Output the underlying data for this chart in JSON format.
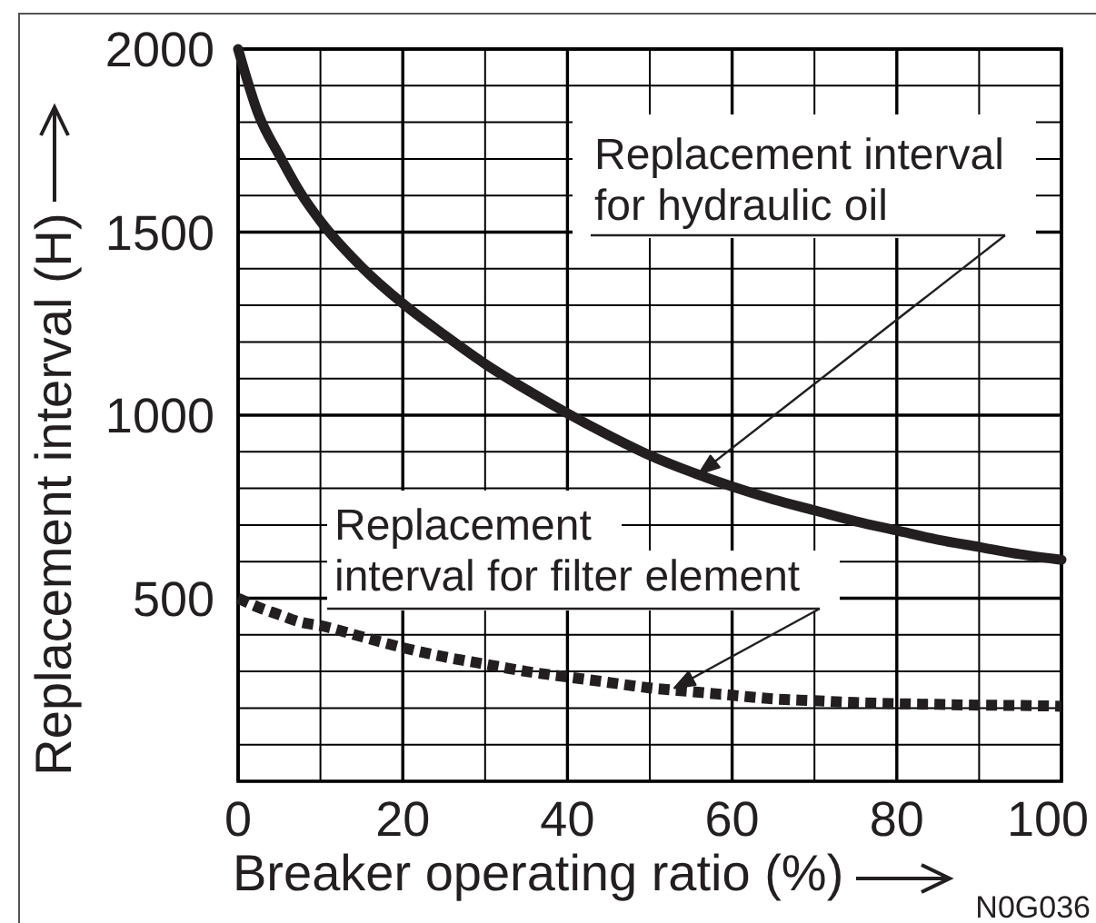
{
  "chart_data": {
    "type": "line",
    "xlabel": "Breaker operating ratio (%)",
    "ylabel": "Replacement interval (H)",
    "x": [
      0,
      2.5,
      5,
      7.5,
      10,
      15,
      20,
      25,
      30,
      35,
      40,
      45,
      50,
      55,
      60,
      65,
      70,
      75,
      80,
      85,
      90,
      95,
      100
    ],
    "series": [
      {
        "color": "#231f20",
        "line_style": "solid",
        "values": [
          2000,
          1820,
          1710,
          1610,
          1530,
          1405,
          1305,
          1220,
          1140,
          1070,
          1005,
          945,
          890,
          845,
          805,
          770,
          740,
          710,
          685,
          660,
          640,
          620,
          605
        ]
      },
      {
        "color": "#231f20",
        "line_style": "dotted",
        "values": [
          500,
          475,
          455,
          435,
          425,
          395,
          365,
          340,
          320,
          300,
          285,
          270,
          255,
          245,
          235,
          225,
          220,
          215,
          212,
          210,
          208,
          207,
          205
        ]
      }
    ],
    "xlim": [
      0,
      100
    ],
    "ylim": [
      0,
      2000
    ],
    "xticks": [
      0,
      {
        "value": 10,
        "label": null
      },
      20,
      {
        "value": 30,
        "label": null
      },
      40,
      {
        "value": 50,
        "label": null
      },
      60,
      {
        "value": 70,
        "label": null
      },
      80,
      {
        "value": 90,
        "label": null
      },
      100
    ],
    "yticks": [
      {
        "value": 0,
        "label": null
      },
      {
        "value": 100,
        "label": null
      },
      {
        "value": 200,
        "label": null
      },
      {
        "value": 300,
        "label": null
      },
      {
        "value": 400,
        "label": null
      },
      500,
      {
        "value": 600,
        "label": null
      },
      {
        "value": 700,
        "label": null
      },
      {
        "value": 800,
        "label": null
      },
      {
        "value": 900,
        "label": null
      },
      1000,
      {
        "value": 1100,
        "label": null
      },
      {
        "value": 1200,
        "label": null
      },
      {
        "value": 1300,
        "label": null
      },
      {
        "value": 1400,
        "label": null
      },
      1500,
      {
        "value": 1600,
        "label": null
      },
      {
        "value": 1700,
        "label": null
      },
      {
        "value": 1800,
        "label": null
      },
      {
        "value": 1900,
        "label": null
      },
      2000
    ],
    "grid": true,
    "annotations": [
      {
        "text": "Replacement interval\nfor hydraulic oil",
        "x": 56,
        "y": 840
      },
      {
        "text": "Replacement\ninterval for filter element",
        "x": 53,
        "y": 255
      },
      "N0G036"
    ]
  }
}
